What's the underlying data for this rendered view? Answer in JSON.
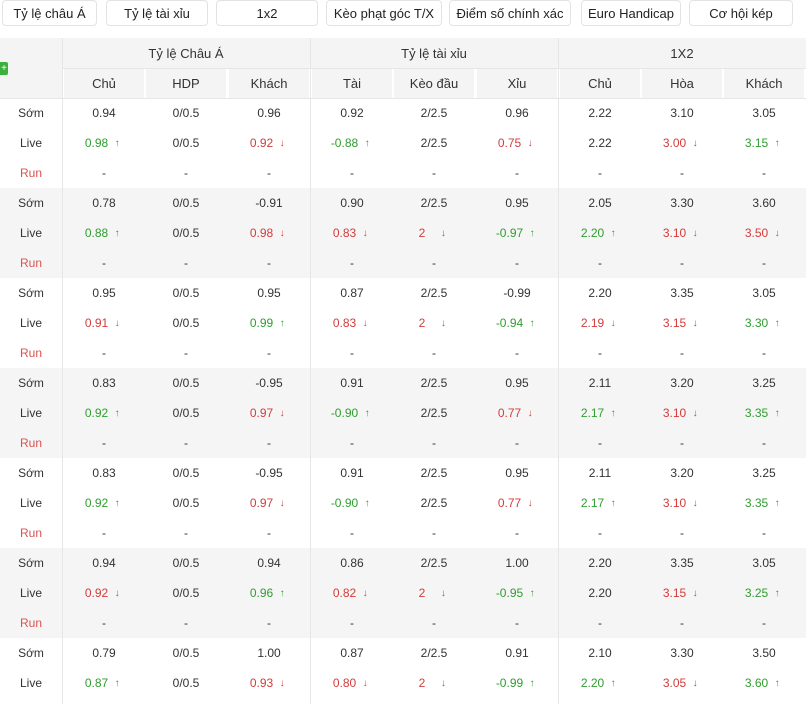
{
  "tabs": [
    "Tỷ lệ châu Á",
    "Tỷ lệ tài xỉu",
    "1x2",
    "Kèo phạt góc T/X",
    "Điểm số chính xác",
    "Euro Handicap",
    "Cơ hội kép"
  ],
  "groups": [
    {
      "label": "Tỷ lệ Châu Á",
      "columns": [
        "Chủ",
        "HDP",
        "Khách"
      ]
    },
    {
      "label": "Tỷ lệ tài xỉu",
      "columns": [
        "Tài",
        "Kèo đầu",
        "Xỉu"
      ]
    },
    {
      "label": "1X2",
      "columns": [
        "Chủ",
        "Hòa",
        "Khách"
      ]
    }
  ],
  "expand_symbol": "+",
  "row_labels": {
    "early": "Sớm",
    "live": "Live",
    "run": "Run"
  },
  "arrows": {
    "up": "↑",
    "down": "↓"
  },
  "colors": {
    "up": "#2e9e2e",
    "down": "#d43b3b",
    "run_label": "#d9534f",
    "expand": "#3cb03c"
  },
  "bookmakers": [
    {
      "early": [
        "0.94",
        "0/0.5",
        "0.96",
        "0.92",
        "2/2.5",
        "0.96",
        "2.22",
        "3.10",
        "3.05"
      ],
      "live": [
        [
          "0.98",
          "up"
        ],
        [
          "0/0.5",
          ""
        ],
        [
          "0.92",
          "down"
        ],
        [
          "-0.88",
          "up"
        ],
        [
          "2/2.5",
          ""
        ],
        [
          "0.75",
          "down"
        ],
        [
          "2.22",
          ""
        ],
        [
          "3.00",
          "down"
        ],
        [
          "3.15",
          "up"
        ]
      ],
      "run": [
        "-",
        "-",
        "-",
        "-",
        "-",
        "-",
        "-",
        "-",
        "-"
      ]
    },
    {
      "early": [
        "0.78",
        "0/0.5",
        "-0.91",
        "0.90",
        "2/2.5",
        "0.95",
        "2.05",
        "3.30",
        "3.60"
      ],
      "live": [
        [
          "0.88",
          "up"
        ],
        [
          "0/0.5",
          ""
        ],
        [
          "0.98",
          "down"
        ],
        [
          "0.83",
          "down"
        ],
        [
          "2",
          "down"
        ],
        [
          "-0.97",
          "up"
        ],
        [
          "2.20",
          "up"
        ],
        [
          "3.10",
          "down"
        ],
        [
          "3.50",
          "down"
        ]
      ],
      "run": [
        "-",
        "-",
        "-",
        "-",
        "-",
        "-",
        "-",
        "-",
        "-"
      ]
    },
    {
      "early": [
        "0.95",
        "0/0.5",
        "0.95",
        "0.87",
        "2/2.5",
        "-0.99",
        "2.20",
        "3.35",
        "3.05"
      ],
      "live": [
        [
          "0.91",
          "down"
        ],
        [
          "0/0.5",
          ""
        ],
        [
          "0.99",
          "up"
        ],
        [
          "0.83",
          "down"
        ],
        [
          "2",
          "down"
        ],
        [
          "-0.94",
          "up"
        ],
        [
          "2.19",
          "down"
        ],
        [
          "3.15",
          "down"
        ],
        [
          "3.30",
          "up"
        ]
      ],
      "run": [
        "-",
        "-",
        "-",
        "-",
        "-",
        "-",
        "-",
        "-",
        "-"
      ]
    },
    {
      "early": [
        "0.83",
        "0/0.5",
        "-0.95",
        "0.91",
        "2/2.5",
        "0.95",
        "2.11",
        "3.20",
        "3.25"
      ],
      "live": [
        [
          "0.92",
          "up"
        ],
        [
          "0/0.5",
          ""
        ],
        [
          "0.97",
          "down"
        ],
        [
          "-0.90",
          "up"
        ],
        [
          "2/2.5",
          ""
        ],
        [
          "0.77",
          "down"
        ],
        [
          "2.17",
          "up"
        ],
        [
          "3.10",
          "down"
        ],
        [
          "3.35",
          "up"
        ]
      ],
      "run": [
        "-",
        "-",
        "-",
        "-",
        "-",
        "-",
        "-",
        "-",
        "-"
      ]
    },
    {
      "early": [
        "0.83",
        "0/0.5",
        "-0.95",
        "0.91",
        "2/2.5",
        "0.95",
        "2.11",
        "3.20",
        "3.25"
      ],
      "live": [
        [
          "0.92",
          "up"
        ],
        [
          "0/0.5",
          ""
        ],
        [
          "0.97",
          "down"
        ],
        [
          "-0.90",
          "up"
        ],
        [
          "2/2.5",
          ""
        ],
        [
          "0.77",
          "down"
        ],
        [
          "2.17",
          "up"
        ],
        [
          "3.10",
          "down"
        ],
        [
          "3.35",
          "up"
        ]
      ],
      "run": [
        "-",
        "-",
        "-",
        "-",
        "-",
        "-",
        "-",
        "-",
        "-"
      ]
    },
    {
      "early": [
        "0.94",
        "0/0.5",
        "0.94",
        "0.86",
        "2/2.5",
        "1.00",
        "2.20",
        "3.35",
        "3.05"
      ],
      "live": [
        [
          "0.92",
          "down"
        ],
        [
          "0/0.5",
          ""
        ],
        [
          "0.96",
          "up"
        ],
        [
          "0.82",
          "down"
        ],
        [
          "2",
          "down"
        ],
        [
          "-0.95",
          "up"
        ],
        [
          "2.20",
          ""
        ],
        [
          "3.15",
          "down"
        ],
        [
          "3.25",
          "up"
        ]
      ],
      "run": [
        "-",
        "-",
        "-",
        "-",
        "-",
        "-",
        "-",
        "-",
        "-"
      ]
    },
    {
      "early": [
        "0.79",
        "0/0.5",
        "1.00",
        "0.87",
        "2/2.5",
        "0.91",
        "2.10",
        "3.30",
        "3.50"
      ],
      "live": [
        [
          "0.87",
          "up"
        ],
        [
          "0/0.5",
          ""
        ],
        [
          "0.93",
          "down"
        ],
        [
          "0.80",
          "down"
        ],
        [
          "2",
          "down"
        ],
        [
          "-0.99",
          "up"
        ],
        [
          "2.20",
          "up"
        ],
        [
          "3.05",
          "down"
        ],
        [
          "3.60",
          "up"
        ]
      ],
      "run": [
        "-",
        "-",
        "-",
        "-",
        "-",
        "-",
        "-",
        "-",
        "-"
      ]
    }
  ]
}
